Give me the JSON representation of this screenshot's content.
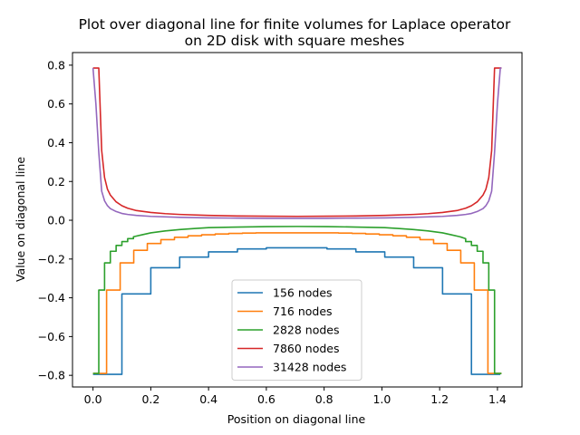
{
  "chart_data": {
    "type": "line",
    "title": [
      "Plot over diagonal line for finite volumes for Laplace operator",
      "on 2D disk with square meshes"
    ],
    "xlabel": "Position on diagonal line",
    "ylabel": "Value on diagonal line",
    "xlim": [
      -0.071,
      1.485
    ],
    "ylim": [
      -0.86,
      0.865
    ],
    "xticks": [
      0.0,
      0.2,
      0.4,
      0.6,
      0.8,
      1.0,
      1.2,
      1.4
    ],
    "xtick_labels": [
      "0.0",
      "0.2",
      "0.4",
      "0.6",
      "0.8",
      "1.0",
      "1.2",
      "1.4"
    ],
    "yticks": [
      -0.8,
      -0.6,
      -0.4,
      -0.2,
      0.0,
      0.2,
      0.4,
      0.6,
      0.8
    ],
    "ytick_labels": [
      "−0.8",
      "−0.6",
      "−0.4",
      "−0.2",
      "0.0",
      "0.2",
      "0.4",
      "0.6",
      "0.8"
    ],
    "grid": false,
    "legend_position": "lower-center",
    "series": [
      {
        "name": "156 nodes",
        "color": "#1f77b4",
        "x": [
          0.0,
          0.1,
          0.1,
          0.2,
          0.2,
          0.3,
          0.3,
          0.4,
          0.4,
          0.5,
          0.5,
          0.6,
          0.6,
          0.81,
          0.81,
          0.91,
          0.91,
          1.01,
          1.01,
          1.11,
          1.11,
          1.21,
          1.21,
          1.31,
          1.31,
          1.41
        ],
        "y": [
          -0.795,
          -0.795,
          -0.38,
          -0.38,
          -0.245,
          -0.245,
          -0.19,
          -0.19,
          -0.163,
          -0.163,
          -0.148,
          -0.148,
          -0.142,
          -0.142,
          -0.148,
          -0.148,
          -0.163,
          -0.163,
          -0.19,
          -0.19,
          -0.245,
          -0.245,
          -0.38,
          -0.38,
          -0.795,
          -0.795
        ]
      },
      {
        "name": "716 nodes",
        "color": "#ff7f0e",
        "x": [
          0.0,
          0.047,
          0.047,
          0.094,
          0.094,
          0.141,
          0.141,
          0.188,
          0.188,
          0.235,
          0.235,
          0.282,
          0.282,
          0.329,
          0.329,
          0.376,
          0.376,
          0.423,
          0.423,
          0.47,
          0.47,
          0.517,
          0.517,
          0.564,
          0.564,
          0.85,
          0.85,
          0.897,
          0.897,
          0.944,
          0.944,
          0.991,
          0.991,
          1.038,
          1.038,
          1.085,
          1.085,
          1.132,
          1.132,
          1.179,
          1.179,
          1.226,
          1.226,
          1.273,
          1.273,
          1.32,
          1.32,
          1.367,
          1.367,
          1.414
        ],
        "y": [
          -0.79,
          -0.79,
          -0.36,
          -0.36,
          -0.22,
          -0.22,
          -0.155,
          -0.155,
          -0.12,
          -0.12,
          -0.1,
          -0.1,
          -0.088,
          -0.088,
          -0.08,
          -0.08,
          -0.075,
          -0.075,
          -0.071,
          -0.071,
          -0.068,
          -0.068,
          -0.066,
          -0.066,
          -0.065,
          -0.065,
          -0.066,
          -0.066,
          -0.068,
          -0.068,
          -0.071,
          -0.071,
          -0.075,
          -0.075,
          -0.08,
          -0.08,
          -0.088,
          -0.088,
          -0.1,
          -0.1,
          -0.12,
          -0.12,
          -0.155,
          -0.155,
          -0.22,
          -0.22,
          -0.36,
          -0.36,
          -0.79,
          -0.79
        ]
      },
      {
        "name": "2828 nodes",
        "color": "#2ca02c",
        "x": [
          0.0,
          0.02,
          0.02,
          0.04,
          0.04,
          0.06,
          0.06,
          0.08,
          0.08,
          0.1,
          0.1,
          0.12,
          0.12,
          0.14,
          0.14,
          0.17,
          0.2,
          0.25,
          0.3,
          0.35,
          0.4,
          0.5,
          0.6,
          0.707,
          0.81,
          0.91,
          1.01,
          1.06,
          1.11,
          1.16,
          1.21,
          1.24,
          1.27,
          1.29,
          1.29,
          1.31,
          1.31,
          1.33,
          1.33,
          1.35,
          1.35,
          1.37,
          1.37,
          1.39,
          1.39,
          1.414
        ],
        "y": [
          -0.79,
          -0.79,
          -0.36,
          -0.36,
          -0.22,
          -0.22,
          -0.16,
          -0.16,
          -0.13,
          -0.13,
          -0.11,
          -0.11,
          -0.095,
          -0.095,
          -0.085,
          -0.075,
          -0.065,
          -0.055,
          -0.048,
          -0.043,
          -0.038,
          -0.035,
          -0.033,
          -0.032,
          -0.033,
          -0.035,
          -0.038,
          -0.043,
          -0.048,
          -0.055,
          -0.065,
          -0.075,
          -0.085,
          -0.095,
          -0.11,
          -0.11,
          -0.13,
          -0.13,
          -0.16,
          -0.16,
          -0.22,
          -0.22,
          -0.36,
          -0.36,
          -0.79,
          -0.79
        ]
      },
      {
        "name": "7860 nodes",
        "color": "#d62728",
        "x": [
          0.0,
          0.01,
          0.02,
          0.03,
          0.04,
          0.05,
          0.06,
          0.08,
          0.1,
          0.12,
          0.15,
          0.2,
          0.25,
          0.3,
          0.4,
          0.5,
          0.6,
          0.707,
          0.81,
          0.91,
          1.01,
          1.11,
          1.16,
          1.21,
          1.26,
          1.29,
          1.31,
          1.33,
          1.35,
          1.36,
          1.37,
          1.38,
          1.39,
          1.4,
          1.414
        ],
        "y": [
          0.785,
          0.785,
          0.785,
          0.36,
          0.22,
          0.16,
          0.13,
          0.095,
          0.075,
          0.062,
          0.05,
          0.04,
          0.034,
          0.03,
          0.025,
          0.022,
          0.021,
          0.02,
          0.021,
          0.022,
          0.025,
          0.03,
          0.034,
          0.04,
          0.05,
          0.062,
          0.075,
          0.095,
          0.13,
          0.16,
          0.22,
          0.36,
          0.785,
          0.785,
          0.785
        ]
      },
      {
        "name": "31428 nodes",
        "color": "#9467bd",
        "x": [
          0.0,
          0.01,
          0.02,
          0.03,
          0.04,
          0.05,
          0.06,
          0.08,
          0.1,
          0.12,
          0.15,
          0.2,
          0.3,
          0.4,
          0.5,
          0.6,
          0.707,
          0.81,
          0.91,
          1.01,
          1.11,
          1.21,
          1.26,
          1.29,
          1.31,
          1.33,
          1.35,
          1.36,
          1.37,
          1.38,
          1.39,
          1.4,
          1.41,
          1.414
        ],
        "y": [
          0.785,
          0.6,
          0.35,
          0.15,
          0.1,
          0.075,
          0.06,
          0.045,
          0.035,
          0.03,
          0.025,
          0.02,
          0.015,
          0.012,
          0.011,
          0.01,
          0.01,
          0.01,
          0.011,
          0.012,
          0.015,
          0.02,
          0.025,
          0.03,
          0.035,
          0.045,
          0.06,
          0.075,
          0.1,
          0.15,
          0.35,
          0.6,
          0.785,
          0.785
        ]
      }
    ]
  }
}
